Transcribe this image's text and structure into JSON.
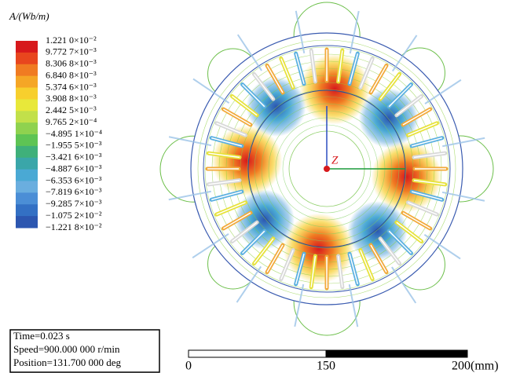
{
  "legend": {
    "title": "A/(Wb/m)",
    "labels": [
      "1.221 0×10⁻²",
      "9.772 7×10⁻³",
      "8.306 8×10⁻³",
      "6.840 8×10⁻³",
      "5.374 6×10⁻³",
      "3.908 8×10⁻³",
      "2.442 5×10⁻³",
      "9.765 2×10⁻⁴",
      "−4.895 1×10⁻⁴",
      "−1.955 5×10⁻³",
      "−3.421 6×10⁻³",
      "−4.887 6×10⁻³",
      "−6.353 6×10⁻³",
      "−7.819 6×10⁻³",
      "−9.285 7×10⁻³",
      "−1.075 2×10⁻²",
      "−1.221 8×10⁻²"
    ],
    "colors": [
      "#d7191c",
      "#e8461e",
      "#f07b22",
      "#f5a626",
      "#f7cf2d",
      "#e8e83a",
      "#c2e04a",
      "#8fd24f",
      "#5ec454",
      "#3fb07a",
      "#3aa6a9",
      "#4aa9d4",
      "#6aaedf",
      "#4b8ed6",
      "#3370c4",
      "#2c56b0"
    ]
  },
  "info": [
    "Time=0.023 s",
    "Speed=900.000 000 r/min",
    "Position=131.700 000 deg"
  ],
  "scale": {
    "labels": [
      "0",
      "150",
      "200(mm)"
    ]
  },
  "axis_label": "Z"
}
